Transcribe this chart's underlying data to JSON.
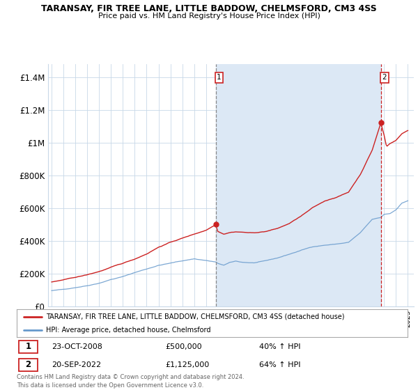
{
  "title": "TARANSAY, FIR TREE LANE, LITTLE BADDOW, CHELMSFORD, CM3 4SS",
  "subtitle": "Price paid vs. HM Land Registry's House Price Index (HPI)",
  "ylabel_ticks": [
    "£0",
    "£200K",
    "£400K",
    "£600K",
    "£800K",
    "£1M",
    "£1.2M",
    "£1.4M"
  ],
  "ytick_values": [
    0,
    200000,
    400000,
    600000,
    800000,
    1000000,
    1200000,
    1400000
  ],
  "ylim": [
    0,
    1480000
  ],
  "xlim_start": 1994.7,
  "xlim_end": 2025.5,
  "background_color": "#ffffff",
  "grid_color": "#c8d8e8",
  "red_line_color": "#cc2222",
  "blue_line_color": "#6699cc",
  "shade_color": "#dce8f5",
  "marker1_x": 2008.81,
  "marker1_y": 500000,
  "marker1_label": "1",
  "marker2_x": 2022.72,
  "marker2_y": 1125000,
  "marker2_label": "2",
  "legend_red_label": "TARANSAY, FIR TREE LANE, LITTLE BADDOW, CHELMSFORD, CM3 4SS (detached house)",
  "legend_blue_label": "HPI: Average price, detached house, Chelmsford",
  "annotation1_date": "23-OCT-2008",
  "annotation1_price": "£500,000",
  "annotation1_hpi": "40% ↑ HPI",
  "annotation2_date": "20-SEP-2022",
  "annotation2_price": "£1,125,000",
  "annotation2_hpi": "64% ↑ HPI",
  "footer1": "Contains HM Land Registry data © Crown copyright and database right 2024.",
  "footer2": "This data is licensed under the Open Government Licence v3.0."
}
